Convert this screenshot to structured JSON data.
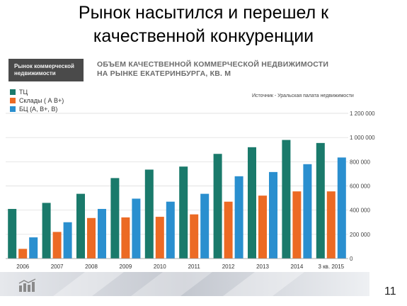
{
  "slide": {
    "title_line1": "Рынок насытился и перешел к",
    "title_line2": "качественной конкуренции",
    "page_number": "11"
  },
  "badge": {
    "line1": "Рынок коммерческой",
    "line2": "недвижимости"
  },
  "chart_heading": {
    "line1": "ОБЪЕМ КАЧЕСТВЕННОЙ КОММЕРЧЕСКОЙ НЕДВИЖИМОСТИ",
    "line2": "НА РЫНКЕ ЕКАТЕРИНБУРГА, КВ. М"
  },
  "source_note": "Источник - Уральская палата недвижимости",
  "colors": {
    "tc": "#1a7a6b",
    "warehouse": "#ec6a24",
    "office": "#2a8fcf",
    "badge_bg": "#4a4a4a",
    "footer": "#c7cbd3"
  },
  "footer": {
    "icon": "bar-chart-icon"
  },
  "chart_data": {
    "type": "bar",
    "categories": [
      "2006",
      "2007",
      "2008",
      "2009",
      "2010",
      "2011",
      "2012",
      "2013",
      "2014",
      "3 кв. 2015"
    ],
    "series": [
      {
        "name": "ТЦ",
        "color": "#1a7a6b",
        "values": [
          410000,
          460000,
          535000,
          665000,
          735000,
          760000,
          865000,
          920000,
          980000,
          955000
        ]
      },
      {
        "name": "Склады ( А В+)",
        "color": "#ec6a24",
        "values": [
          80000,
          220000,
          335000,
          340000,
          345000,
          365000,
          470000,
          520000,
          555000,
          555000
        ]
      },
      {
        "name": "БЦ (А, В+, В)",
        "color": "#2a8fcf",
        "values": [
          175000,
          300000,
          410000,
          495000,
          470000,
          535000,
          680000,
          715000,
          780000,
          835000
        ]
      }
    ],
    "yticks": [
      "0",
      "200 000",
      "400 000",
      "600 000",
      "800 000",
      "1 000 000",
      "1 200 000"
    ],
    "ylim": [
      0,
      1200000
    ],
    "grid": true,
    "legend_position": "top-left"
  }
}
